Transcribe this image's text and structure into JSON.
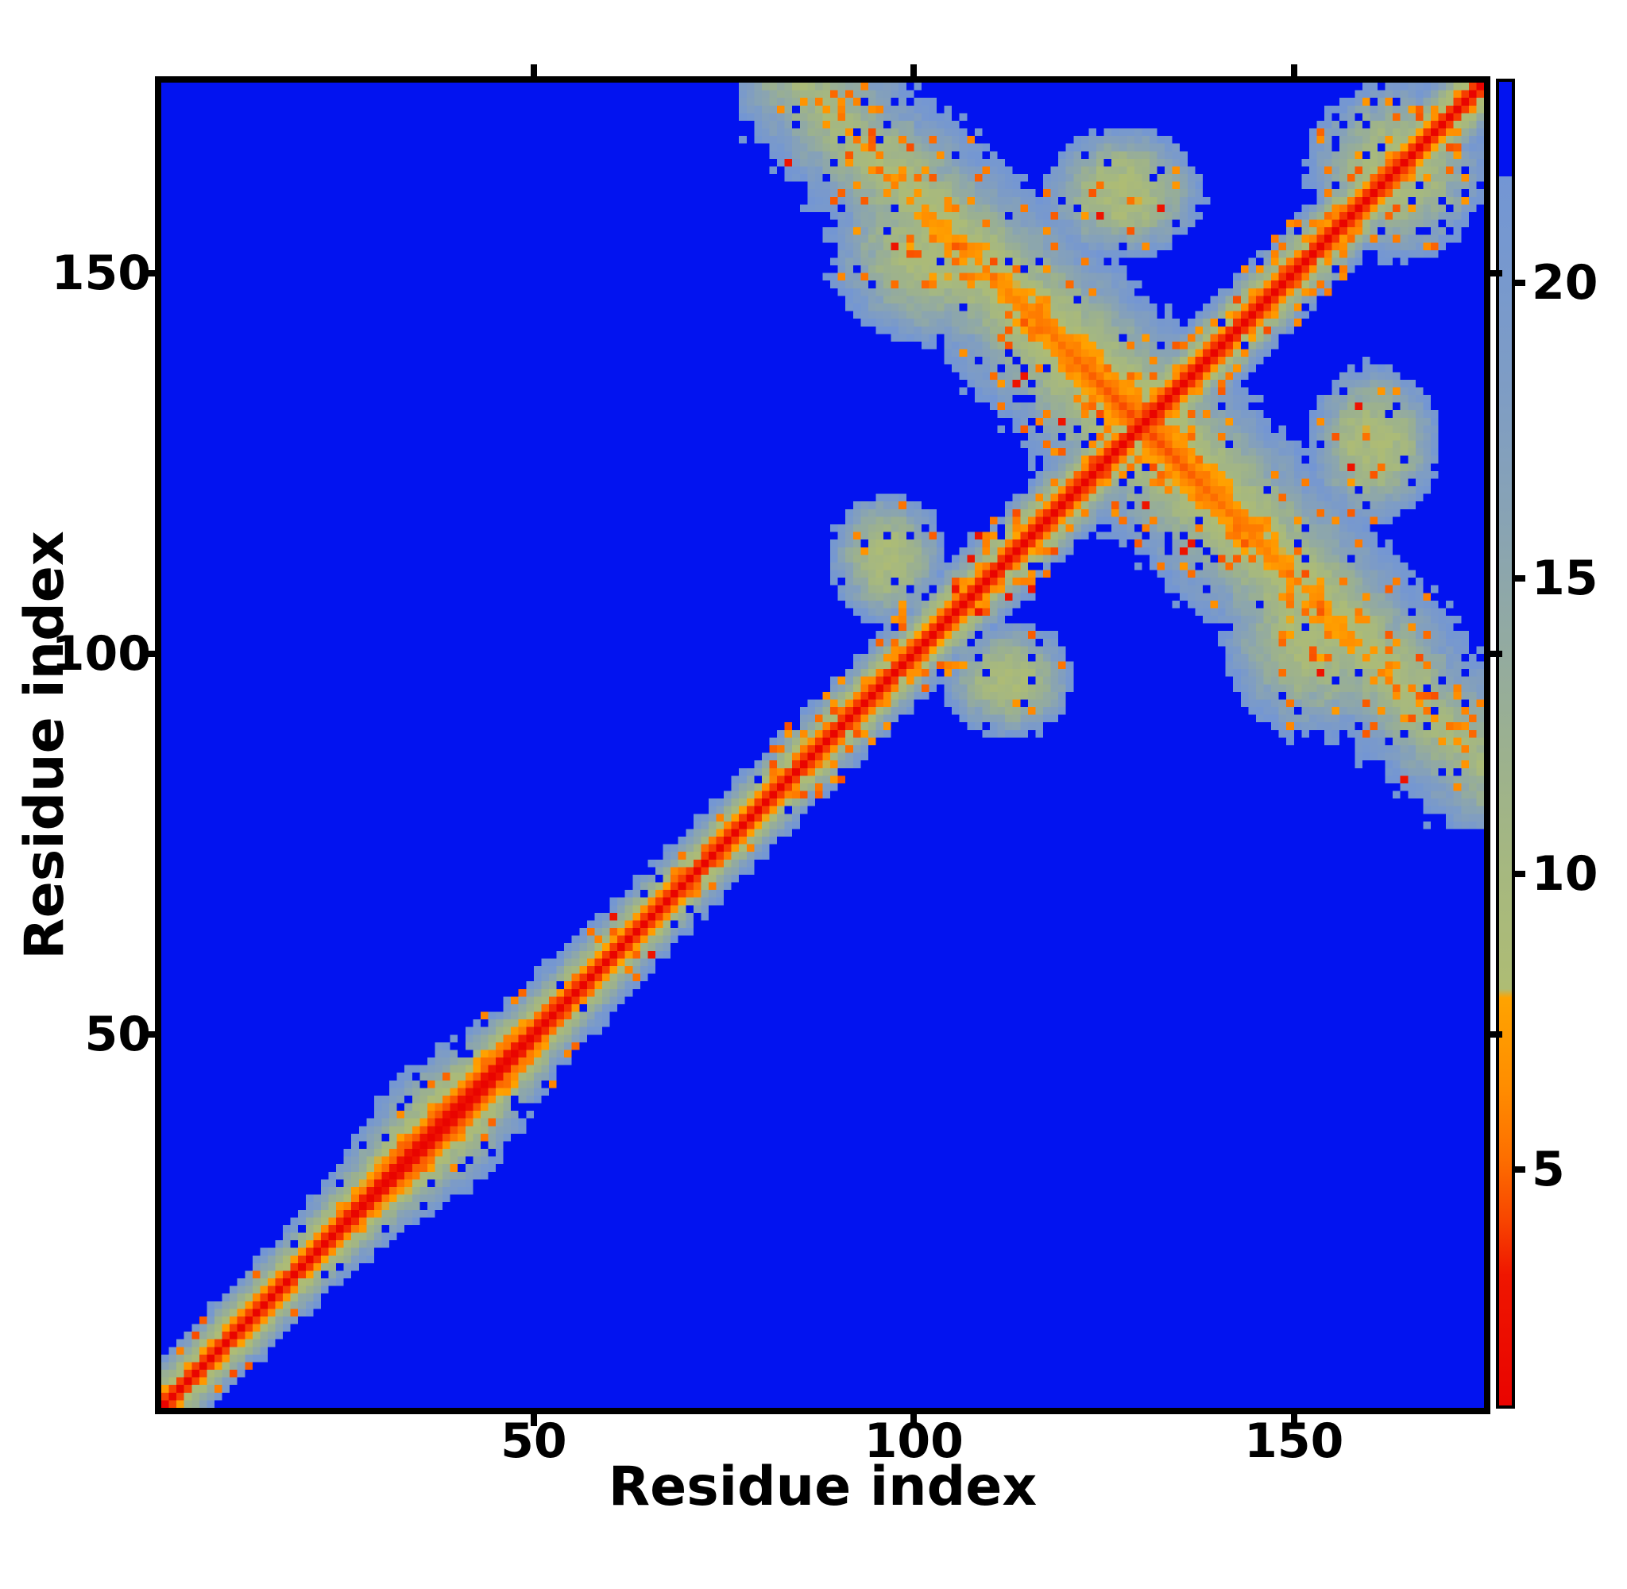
{
  "figure": {
    "background": "#ffffff",
    "kind": "protein residue-residue distance map heatmap with colorbar"
  },
  "chart_data": {
    "type": "heatmap",
    "title": "",
    "xlabel": "Residue index",
    "ylabel": "Residue index",
    "x_ticks": [
      50,
      100,
      150
    ],
    "y_ticks": [
      50,
      100,
      150
    ],
    "x_range": [
      1,
      175
    ],
    "y_range": [
      1,
      175
    ],
    "n_residues": 174,
    "grid": false,
    "legend_position": "none",
    "colorbar": {
      "ticks": [
        5,
        10,
        15,
        20
      ],
      "vmin": 1.0,
      "vmax": 23.4,
      "blue_cutoff": 21.8,
      "background_color": "#0213f0"
    },
    "colormap_stops": [
      [
        1.0,
        "#e90400"
      ],
      [
        3.2,
        "#ef1600"
      ],
      [
        4.2,
        "#f84800"
      ],
      [
        5.2,
        "#fd6f00"
      ],
      [
        6.4,
        "#ff8d00"
      ],
      [
        7.9,
        "#ffa300"
      ],
      [
        8.05,
        "#aebc74"
      ],
      [
        10.0,
        "#a6b87f"
      ],
      [
        12.0,
        "#9cb18e"
      ],
      [
        14.0,
        "#92aaa2"
      ],
      [
        16.0,
        "#88a3b4"
      ],
      [
        18.0,
        "#7f9dc3"
      ],
      [
        20.0,
        "#7899cd"
      ],
      [
        21.8,
        "#7396d4"
      ]
    ],
    "structure_model": {
      "comment": "Distance (colour) at cell (i,j) = min of backbone-band, antiparallel hairpin arm crossing the diagonal near residue 129, and broad contact patches; mottle/speckle/hole noise reproduces the pixelated texture.",
      "backbone": {
        "d0": 1.0,
        "slope": 3.1
      },
      "band_bulges": [
        {
          "center": 38,
          "sigma": 9,
          "depth": 1.35
        },
        {
          "center": 130,
          "sigma": 30,
          "depth": 0.35
        }
      ],
      "antiparallel_hairpin": {
        "sum_center": 259,
        "base": 4.0,
        "perp_slope": 0.92,
        "seq_slope": 0.06,
        "min_index": 77
      },
      "contact_patches": [
        {
          "cx": 103,
          "cy": 152,
          "sx": 15,
          "sy": 12,
          "base": 8.3,
          "grow": 14
        },
        {
          "cx": 127,
          "cy": 160,
          "sx": 11,
          "sy": 9,
          "base": 8.8,
          "grow": 14
        },
        {
          "cx": 96,
          "cy": 112,
          "sx": 8,
          "sy": 9,
          "base": 9.0,
          "grow": 14
        },
        {
          "cx": 163,
          "cy": 163,
          "sx": 12,
          "sy": 12,
          "base": 8.5,
          "grow": 14
        }
      ],
      "mottle": {
        "threshold": 6.2,
        "amp_fine": 1.3,
        "amp_coarse": 0.9
      },
      "speckles": {
        "base_p": 0.05,
        "hairpin_p": 0.2,
        "hairpin_width": 5,
        "band_p": 0.13,
        "band_seq_max": 7,
        "band_t_min": 82,
        "value_min": 4.3,
        "value_spread": 3.0,
        "red_p": 0.004,
        "red_value": 2.8
      },
      "holes": {
        "p": 0.055,
        "d_min": 9.5,
        "d_max": 21.0,
        "value": 23.0
      }
    }
  }
}
